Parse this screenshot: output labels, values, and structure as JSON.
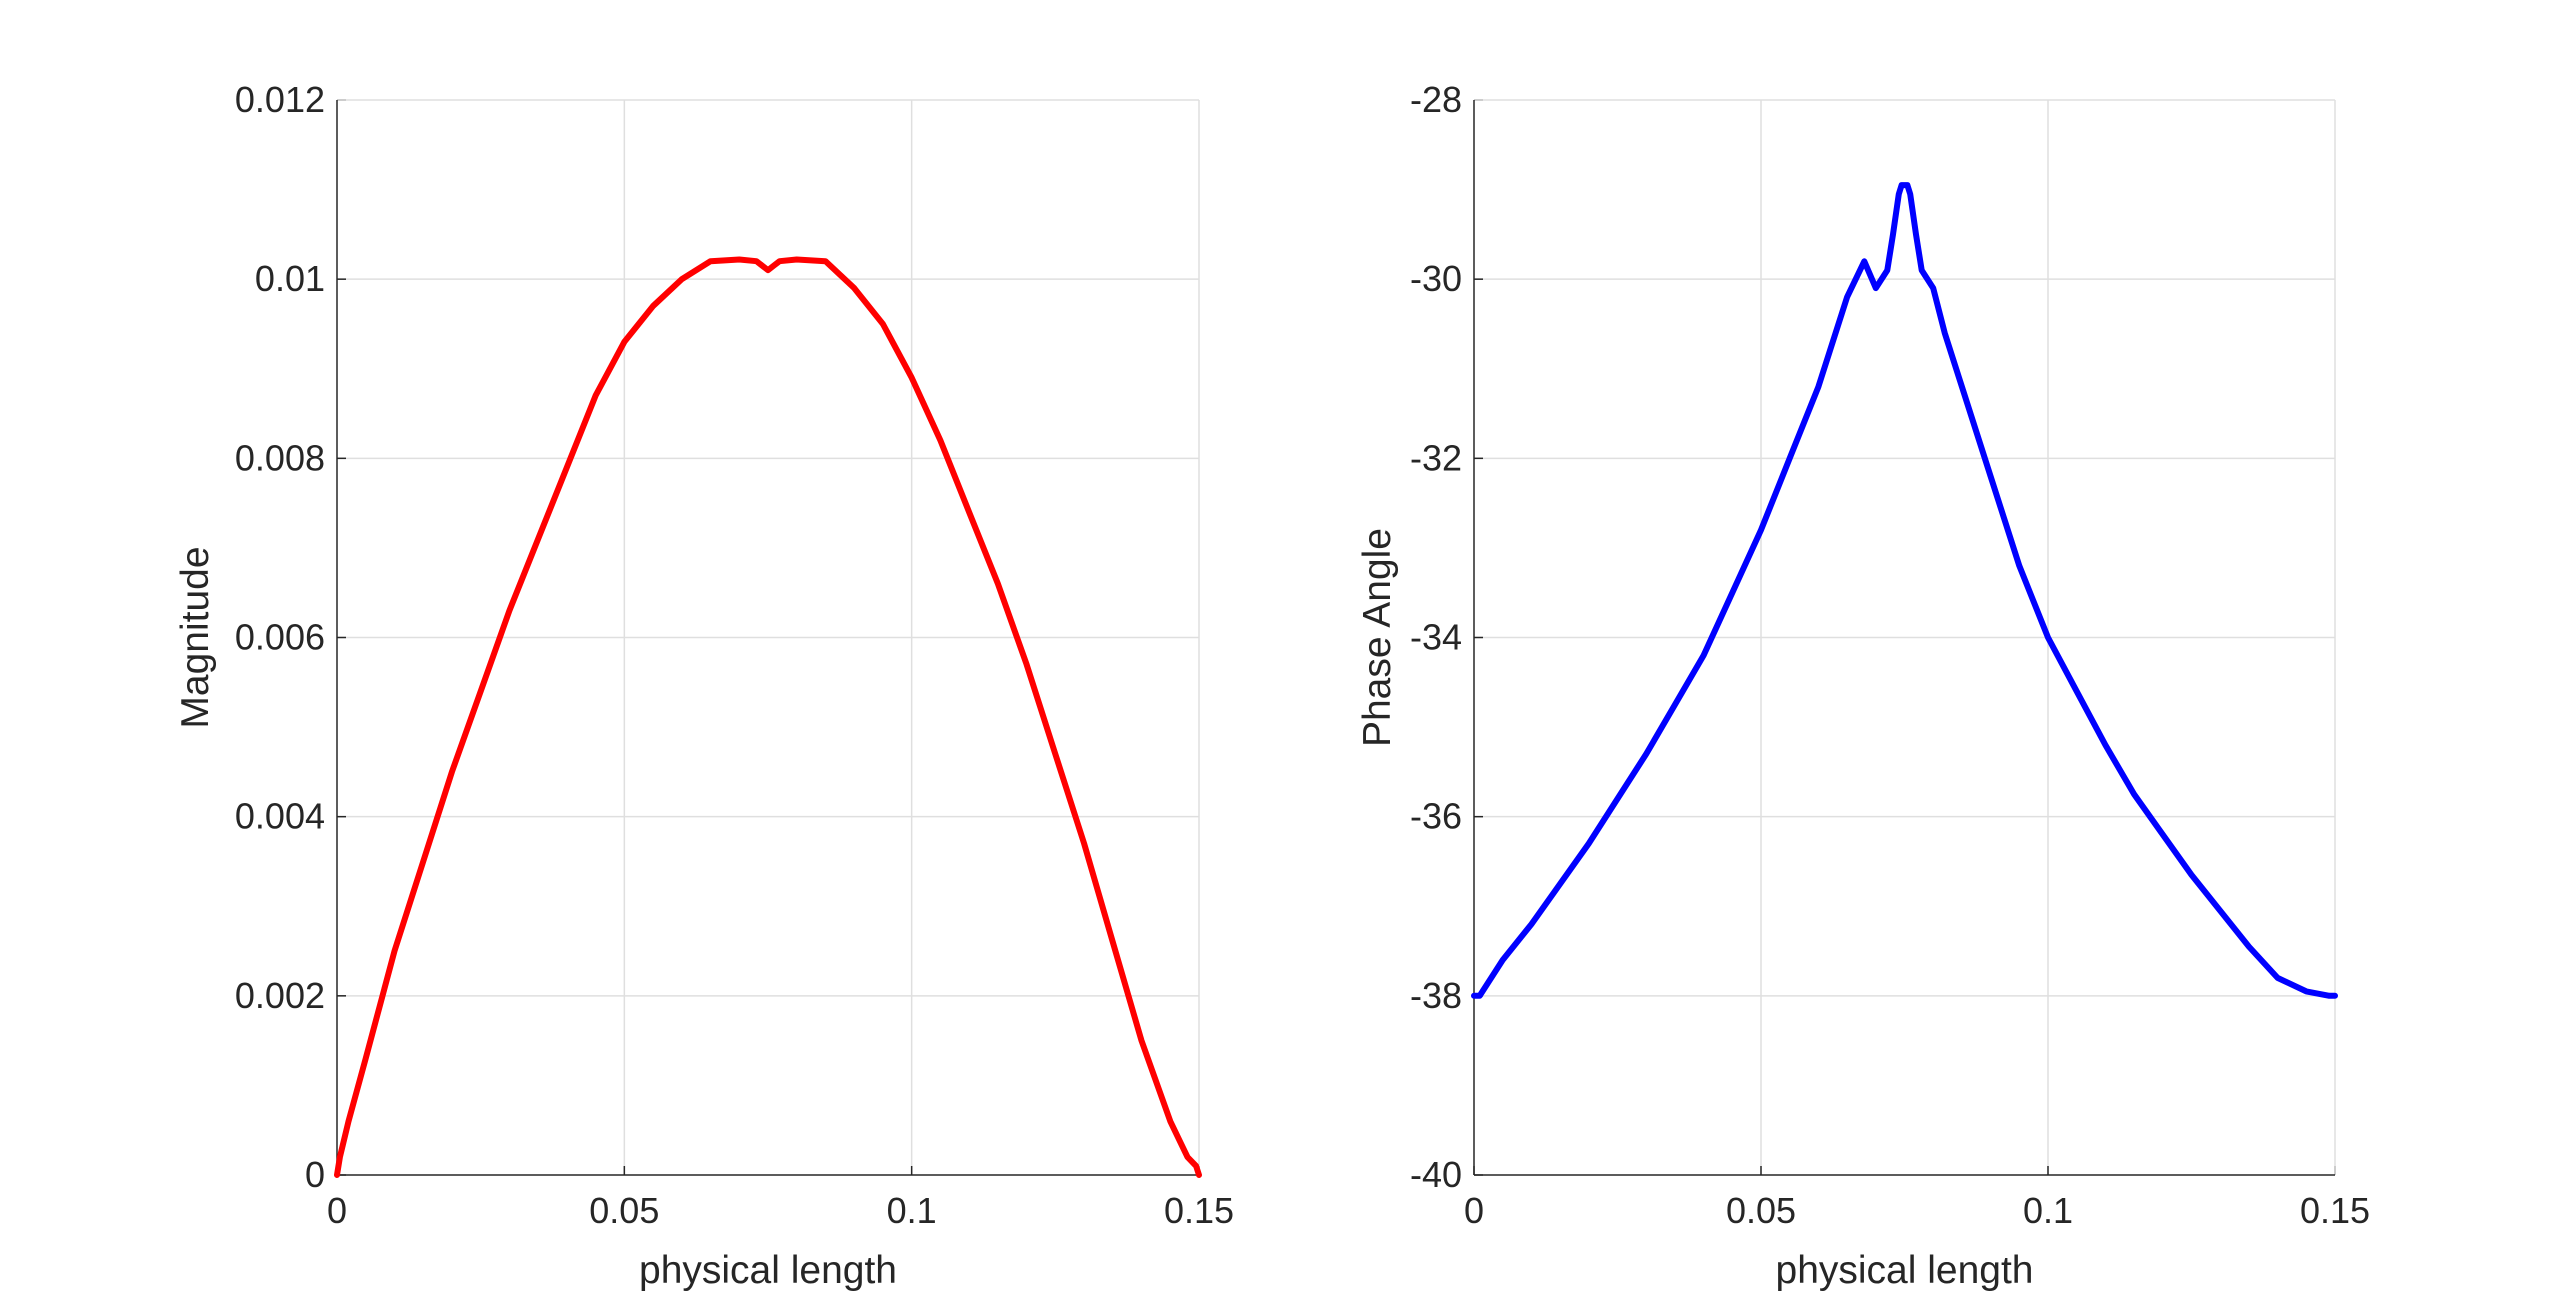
{
  "chart_data": [
    {
      "type": "line",
      "xlabel": "physical length",
      "ylabel": "Magnitude",
      "xlim": [
        0,
        0.15
      ],
      "ylim": [
        0,
        0.012
      ],
      "xticks": [
        "0",
        "0.05",
        "0.1",
        "0.15"
      ],
      "yticks": [
        "0",
        "0.002",
        "0.004",
        "0.006",
        "0.008",
        "0.01",
        "0.012"
      ],
      "grid": true,
      "line_color": "#ff0000",
      "series": [
        {
          "x": [
            0,
            0.0005,
            0.002,
            0.005,
            0.01,
            0.015,
            0.02,
            0.025,
            0.03,
            0.035,
            0.04,
            0.045,
            0.05,
            0.055,
            0.06,
            0.065,
            0.07,
            0.073,
            0.074,
            0.075,
            0.076,
            0.077,
            0.08,
            0.085,
            0.09,
            0.095,
            0.1,
            0.105,
            0.11,
            0.115,
            0.12,
            0.125,
            0.13,
            0.135,
            0.14,
            0.145,
            0.148,
            0.1495,
            0.15
          ],
          "y": [
            0,
            0.0002,
            0.0006,
            0.0013,
            0.0025,
            0.0035,
            0.0045,
            0.0054,
            0.0063,
            0.0071,
            0.0079,
            0.0087,
            0.0093,
            0.0097,
            0.01,
            0.0102,
            0.01022,
            0.0102,
            0.01015,
            0.0101,
            0.01015,
            0.0102,
            0.01022,
            0.0102,
            0.0099,
            0.0095,
            0.0089,
            0.0082,
            0.0074,
            0.0066,
            0.0057,
            0.0047,
            0.0037,
            0.0026,
            0.0015,
            0.0006,
            0.0002,
            0.0001,
            0
          ]
        }
      ]
    },
    {
      "type": "line",
      "xlabel": "physical length",
      "ylabel": "Phase Angle",
      "xlim": [
        0,
        0.15
      ],
      "ylim": [
        -40,
        -28
      ],
      "xticks": [
        "0",
        "0.05",
        "0.1",
        "0.15"
      ],
      "yticks": [
        "-40",
        "-38",
        "-36",
        "-34",
        "-32",
        "-30",
        "-28"
      ],
      "grid": true,
      "line_color": "#0000ff",
      "series": [
        {
          "x": [
            0,
            0.001,
            0.005,
            0.01,
            0.015,
            0.02,
            0.025,
            0.03,
            0.035,
            0.04,
            0.045,
            0.05,
            0.055,
            0.06,
            0.065,
            0.068,
            0.07,
            0.072,
            0.073,
            0.074,
            0.0745,
            0.0755,
            0.076,
            0.077,
            0.078,
            0.08,
            0.082,
            0.085,
            0.09,
            0.095,
            0.1,
            0.105,
            0.11,
            0.115,
            0.12,
            0.125,
            0.13,
            0.135,
            0.14,
            0.145,
            0.149,
            0.15
          ],
          "y": [
            -38.0,
            -38.0,
            -37.6,
            -37.2,
            -36.75,
            -36.3,
            -35.8,
            -35.3,
            -34.75,
            -34.2,
            -33.5,
            -32.8,
            -32.0,
            -31.2,
            -30.2,
            -29.8,
            -30.1,
            -29.9,
            -29.5,
            -29.05,
            -28.95,
            -28.95,
            -29.05,
            -29.5,
            -29.9,
            -30.1,
            -30.6,
            -31.2,
            -32.2,
            -33.2,
            -34.0,
            -34.6,
            -35.2,
            -35.75,
            -36.2,
            -36.65,
            -37.05,
            -37.45,
            -37.8,
            -37.95,
            -38.0,
            -38.0
          ]
        }
      ]
    }
  ]
}
